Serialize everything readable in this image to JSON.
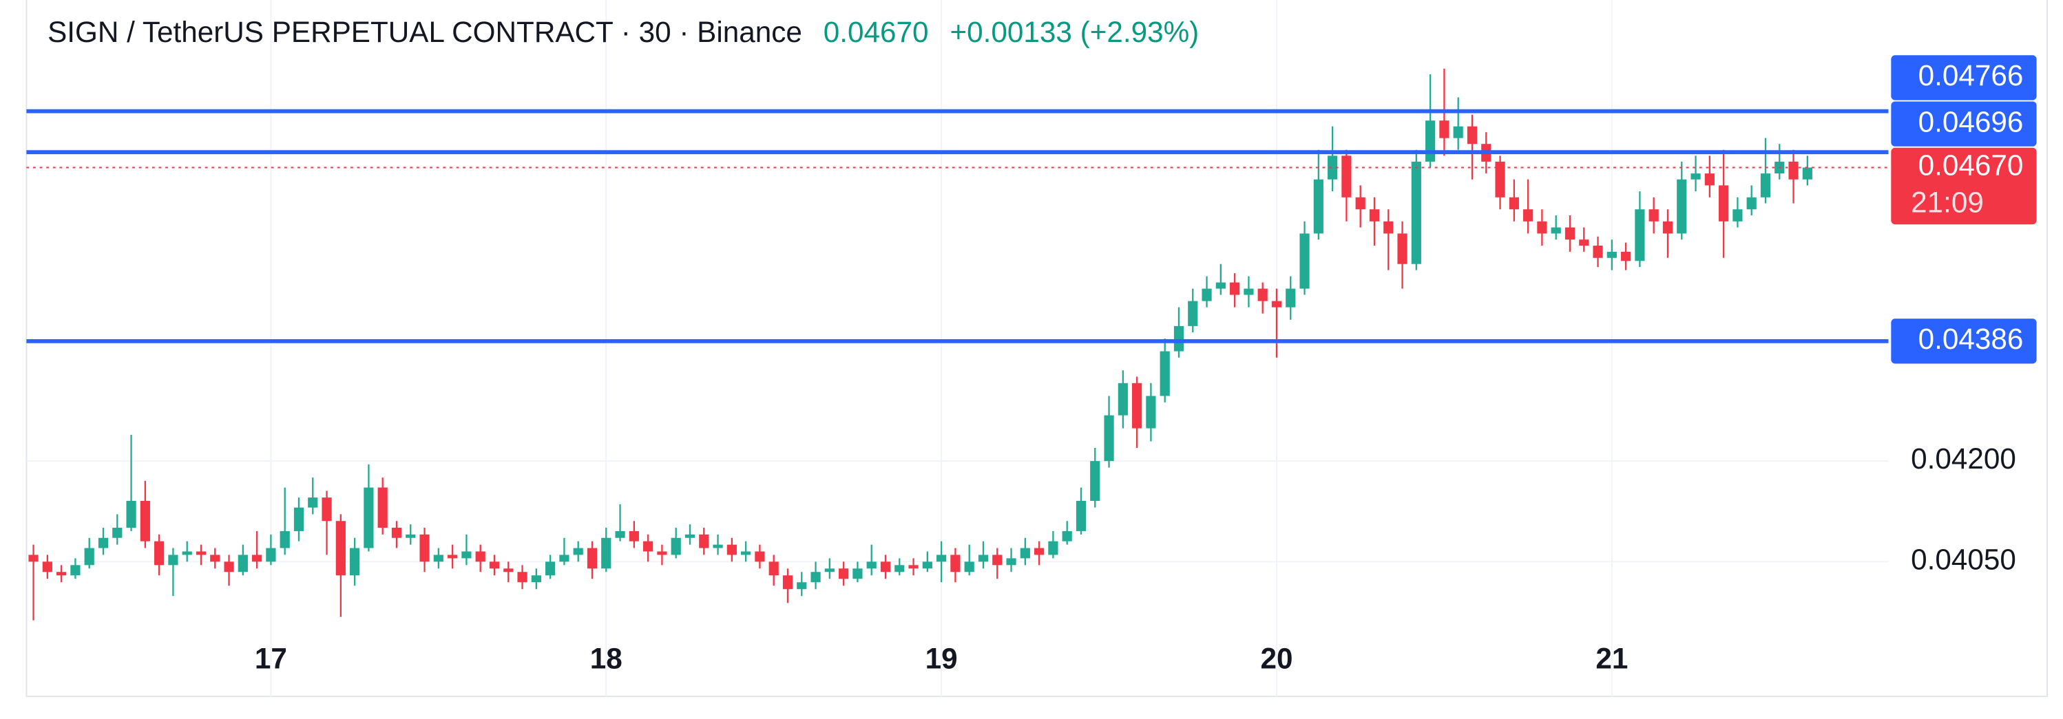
{
  "chart_data": {
    "type": "candlestick",
    "title": "SIGN / TetherUS PERPETUAL CONTRACT · 30 · Binance",
    "current_price": {
      "value": 0.0467,
      "label": "0.04670"
    },
    "change": "+0.00133 (+2.93%)",
    "countdown": "21:09",
    "categories": [
      null,
      null,
      null,
      null,
      null,
      null,
      null,
      null,
      null,
      null,
      null,
      null,
      null,
      null,
      null,
      null,
      null,
      "17",
      null,
      null,
      null,
      null,
      null,
      null,
      null,
      null,
      null,
      null,
      null,
      null,
      null,
      null,
      null,
      null,
      null,
      null,
      null,
      null,
      null,
      null,
      null,
      "18",
      null,
      null,
      null,
      null,
      null,
      null,
      null,
      null,
      null,
      null,
      null,
      null,
      null,
      null,
      null,
      null,
      null,
      null,
      null,
      null,
      null,
      null,
      null,
      "19",
      null,
      null,
      null,
      null,
      null,
      null,
      null,
      null,
      null,
      null,
      null,
      null,
      null,
      null,
      null,
      null,
      null,
      null,
      null,
      null,
      null,
      null,
      null,
      "20",
      null,
      null,
      null,
      null,
      null,
      null,
      null,
      null,
      null,
      null,
      null,
      null,
      null,
      null,
      null,
      null,
      null,
      null,
      null,
      null,
      null,
      null,
      null,
      "21",
      null,
      null,
      null,
      null,
      null,
      null,
      null,
      null,
      null,
      null,
      null,
      null,
      null,
      null
    ],
    "open": [
      0.0406,
      0.0405,
      0.04035,
      0.0403,
      0.04045,
      0.0407,
      0.04085,
      0.041,
      0.0414,
      0.0408,
      0.04045,
      0.0406,
      0.04065,
      0.0406,
      0.0405,
      0.04035,
      0.0406,
      0.0405,
      0.0407,
      0.04095,
      0.0413,
      0.04145,
      0.0411,
      0.0403,
      0.0407,
      0.0416,
      0.041,
      0.04085,
      0.0409,
      0.0405,
      0.0406,
      0.04055,
      0.04065,
      0.0405,
      0.0404,
      0.04035,
      0.0402,
      0.0403,
      0.0405,
      0.0406,
      0.0407,
      0.0404,
      0.04085,
      0.04095,
      0.0408,
      0.04065,
      0.0406,
      0.04085,
      0.0409,
      0.0407,
      0.04075,
      0.0406,
      0.04065,
      0.0405,
      0.0403,
      0.0401,
      0.0402,
      0.04035,
      0.0404,
      0.04025,
      0.0404,
      0.0405,
      0.04035,
      0.04045,
      0.0404,
      0.0405,
      0.0406,
      0.04035,
      0.0405,
      0.0406,
      0.04045,
      0.04055,
      0.0407,
      0.0406,
      0.0408,
      0.04095,
      0.0414,
      0.042,
      0.0427,
      0.0432,
      0.0425,
      0.043,
      0.0437,
      0.0441,
      0.0445,
      0.0447,
      0.0448,
      0.0446,
      0.0447,
      0.0445,
      0.0444,
      0.0447,
      0.0456,
      0.0465,
      0.0469,
      0.0462,
      0.046,
      0.0458,
      0.0456,
      0.0451,
      0.0468,
      0.0475,
      0.0472,
      0.0474,
      0.0471,
      0.0468,
      0.0462,
      0.046,
      0.0458,
      0.0456,
      0.0457,
      0.0455,
      0.0454,
      0.0452,
      0.0453,
      0.04515,
      0.046,
      0.0458,
      0.0456,
      0.0465,
      0.0466,
      0.0464,
      0.0458,
      0.046,
      0.0462,
      0.0466,
      0.0468,
      0.0465
    ],
    "high": [
      0.04075,
      0.0406,
      0.04045,
      0.04055,
      0.04085,
      0.041,
      0.0412,
      0.0424,
      0.0417,
      0.0409,
      0.0407,
      0.0408,
      0.04075,
      0.0407,
      0.0406,
      0.04075,
      0.04095,
      0.0409,
      0.0416,
      0.04145,
      0.04175,
      0.04155,
      0.0412,
      0.04085,
      0.04195,
      0.04175,
      0.0411,
      0.04105,
      0.041,
      0.0407,
      0.04075,
      0.0409,
      0.04075,
      0.0406,
      0.0405,
      0.04045,
      0.0404,
      0.0406,
      0.04085,
      0.0408,
      0.0408,
      0.041,
      0.04135,
      0.0411,
      0.0409,
      0.04075,
      0.041,
      0.04105,
      0.041,
      0.0409,
      0.04085,
      0.0408,
      0.04075,
      0.0406,
      0.0404,
      0.04035,
      0.0405,
      0.04055,
      0.0405,
      0.0405,
      0.04075,
      0.0406,
      0.04055,
      0.04055,
      0.04065,
      0.0408,
      0.0407,
      0.04075,
      0.0408,
      0.0407,
      0.0407,
      0.04085,
      0.0408,
      0.04095,
      0.0411,
      0.0416,
      0.0422,
      0.043,
      0.0434,
      0.0433,
      0.0432,
      0.0439,
      0.0444,
      0.0447,
      0.0449,
      0.0451,
      0.04495,
      0.0449,
      0.0448,
      0.0447,
      0.0449,
      0.0458,
      0.047,
      0.0474,
      0.047,
      0.0464,
      0.0462,
      0.046,
      0.0458,
      0.047,
      0.0483,
      0.0484,
      0.0479,
      0.0476,
      0.0473,
      0.0469,
      0.0465,
      0.0465,
      0.046,
      0.0459,
      0.0459,
      0.0457,
      0.04555,
      0.0455,
      0.04545,
      0.0463,
      0.0462,
      0.046,
      0.0468,
      0.0469,
      0.0469,
      0.047,
      0.0462,
      0.0464,
      0.0472,
      0.0471,
      0.047,
      0.0469
    ],
    "low": [
      0.03965,
      0.04025,
      0.0402,
      0.04025,
      0.0404,
      0.0406,
      0.04075,
      0.04095,
      0.0407,
      0.0403,
      0.04,
      0.0405,
      0.04045,
      0.0404,
      0.04015,
      0.0403,
      0.0404,
      0.04045,
      0.0406,
      0.0408,
      0.0412,
      0.0406,
      0.0397,
      0.04015,
      0.04065,
      0.0409,
      0.0407,
      0.04075,
      0.04035,
      0.0404,
      0.0404,
      0.04045,
      0.04035,
      0.0403,
      0.0402,
      0.0401,
      0.0401,
      0.04025,
      0.04045,
      0.0405,
      0.04025,
      0.04035,
      0.0408,
      0.0407,
      0.0405,
      0.04045,
      0.04055,
      0.04075,
      0.0406,
      0.0406,
      0.0405,
      0.0405,
      0.0404,
      0.04015,
      0.0399,
      0.04,
      0.0401,
      0.04025,
      0.04015,
      0.0402,
      0.0403,
      0.04025,
      0.0403,
      0.0403,
      0.04035,
      0.0402,
      0.0402,
      0.0403,
      0.0404,
      0.04025,
      0.04035,
      0.04045,
      0.04045,
      0.04055,
      0.04075,
      0.0409,
      0.0413,
      0.0419,
      0.0425,
      0.0422,
      0.0423,
      0.0429,
      0.0436,
      0.044,
      0.0444,
      0.0446,
      0.0444,
      0.0444,
      0.0443,
      0.0436,
      0.0442,
      0.0446,
      0.0455,
      0.0463,
      0.0458,
      0.0457,
      0.0454,
      0.045,
      0.0447,
      0.045,
      0.0467,
      0.0469,
      0.047,
      0.0465,
      0.0466,
      0.046,
      0.0458,
      0.0456,
      0.0454,
      0.0455,
      0.0453,
      0.0453,
      0.04505,
      0.045,
      0.045,
      0.04505,
      0.0456,
      0.0452,
      0.0455,
      0.0463,
      0.0462,
      0.0452,
      0.0457,
      0.0459,
      0.0461,
      0.0465,
      0.0461,
      0.0464
    ],
    "close": [
      0.0405,
      0.04035,
      0.0403,
      0.04045,
      0.0407,
      0.04085,
      0.041,
      0.0414,
      0.0408,
      0.04045,
      0.0406,
      0.04065,
      0.0406,
      0.0405,
      0.04035,
      0.0406,
      0.0405,
      0.0407,
      0.04095,
      0.0413,
      0.04145,
      0.0411,
      0.0403,
      0.0407,
      0.0416,
      0.041,
      0.04085,
      0.0409,
      0.0405,
      0.0406,
      0.04055,
      0.04065,
      0.0405,
      0.0404,
      0.04035,
      0.0402,
      0.0403,
      0.0405,
      0.0406,
      0.0407,
      0.0404,
      0.04085,
      0.04095,
      0.0408,
      0.04065,
      0.0406,
      0.04085,
      0.0409,
      0.0407,
      0.04075,
      0.0406,
      0.04065,
      0.0405,
      0.0403,
      0.0401,
      0.0402,
      0.04035,
      0.0404,
      0.04025,
      0.0404,
      0.0405,
      0.04035,
      0.04045,
      0.0404,
      0.0405,
      0.0406,
      0.04035,
      0.0405,
      0.0406,
      0.04045,
      0.04055,
      0.0407,
      0.0406,
      0.0408,
      0.04095,
      0.0414,
      0.042,
      0.0427,
      0.0432,
      0.0425,
      0.043,
      0.0437,
      0.0441,
      0.0445,
      0.0447,
      0.0448,
      0.0446,
      0.0447,
      0.0445,
      0.0444,
      0.0447,
      0.0456,
      0.0465,
      0.0469,
      0.0462,
      0.046,
      0.0458,
      0.0456,
      0.0451,
      0.0468,
      0.0475,
      0.0472,
      0.0474,
      0.0471,
      0.0468,
      0.0462,
      0.046,
      0.0458,
      0.0456,
      0.0457,
      0.0455,
      0.0454,
      0.0452,
      0.0453,
      0.04515,
      0.046,
      0.0458,
      0.0456,
      0.0465,
      0.0466,
      0.0464,
      0.0458,
      0.046,
      0.0462,
      0.0466,
      0.0468,
      0.0465,
      0.0467
    ],
    "up_color": "#22ab94",
    "down_color": "#f23645",
    "levels": [
      0.04766,
      0.04696,
      0.04386
    ],
    "level_color": "#2962ff",
    "log_scale": true,
    "ylim": [
      0.03964,
      0.04856
    ],
    "yticks": [
      {
        "value": 0.042,
        "label": "0.04200"
      },
      {
        "value": 0.0405,
        "label": "0.04050"
      }
    ],
    "grid": true
  }
}
